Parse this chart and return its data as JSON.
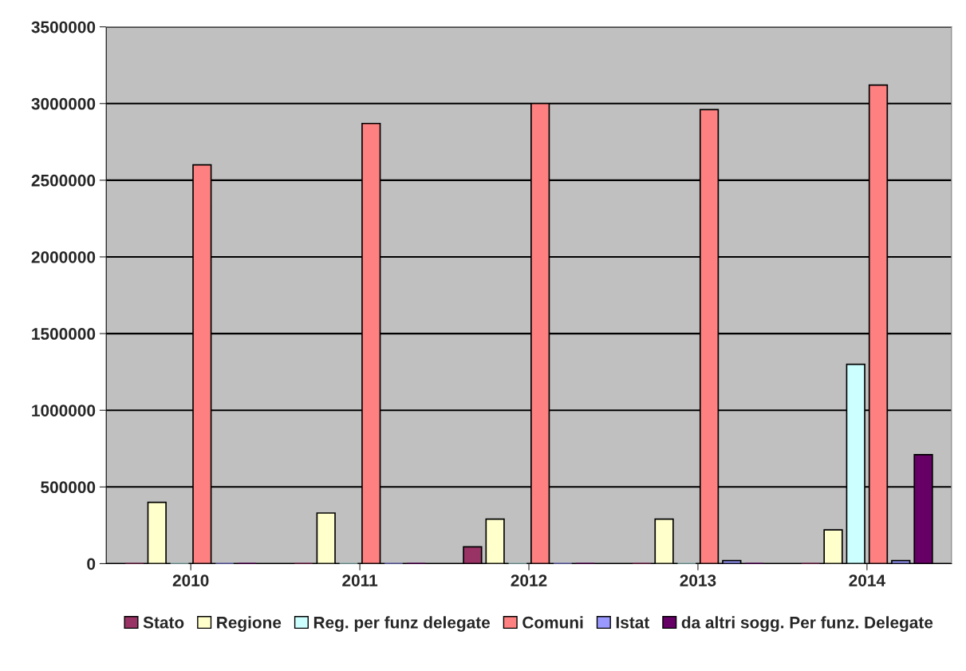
{
  "chart_data": {
    "type": "bar",
    "categories": [
      "2010",
      "2011",
      "2012",
      "2013",
      "2014"
    ],
    "series": [
      {
        "name": "Stato",
        "color": "#993366",
        "values": [
          0,
          0,
          110000,
          0,
          0
        ]
      },
      {
        "name": "Regione",
        "color": "#ffffcc",
        "values": [
          400000,
          330000,
          290000,
          290000,
          220000
        ]
      },
      {
        "name": "Reg. per funz delegate",
        "color": "#ccffff",
        "values": [
          0,
          0,
          0,
          0,
          1300000
        ]
      },
      {
        "name": "Comuni",
        "color": "#ff8080",
        "values": [
          2600000,
          2870000,
          3000000,
          2960000,
          3120000
        ]
      },
      {
        "name": "Istat",
        "color": "#9999ff",
        "values": [
          0,
          0,
          0,
          20000,
          20000
        ]
      },
      {
        "name": "da altri sogg. Per funz. Delegate",
        "color": "#660066",
        "values": [
          0,
          0,
          0,
          0,
          710000
        ]
      }
    ],
    "ylim": [
      0,
      3500000
    ],
    "yticks": [
      0,
      500000,
      1000000,
      1500000,
      2000000,
      2500000,
      3000000,
      3500000
    ],
    "grid": "y",
    "legend": "bottom"
  }
}
